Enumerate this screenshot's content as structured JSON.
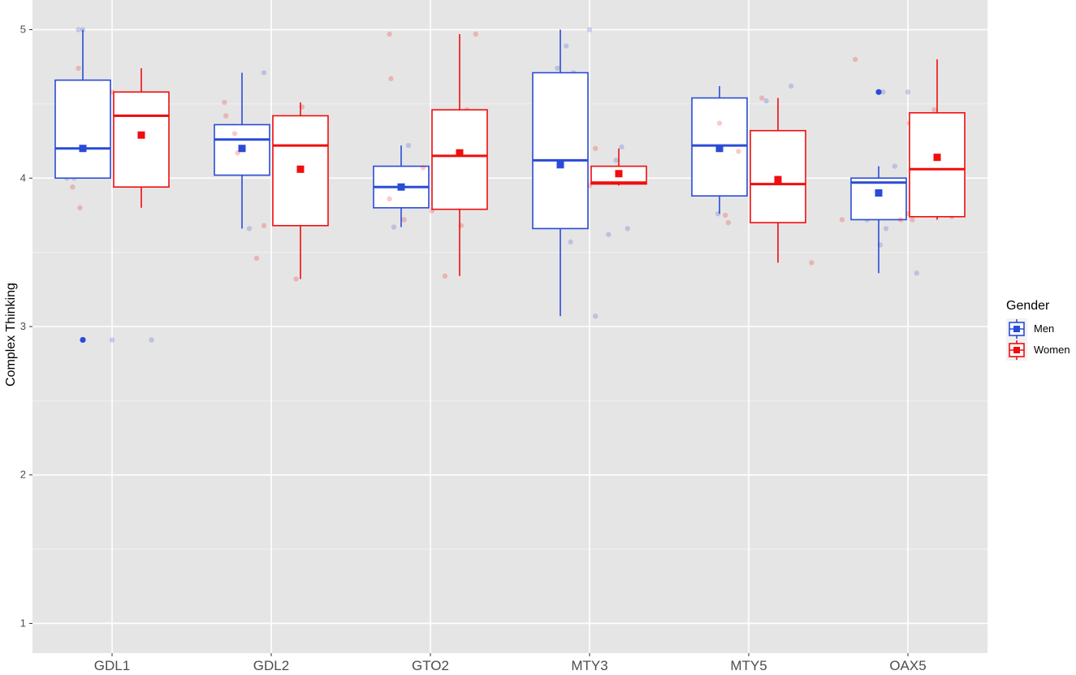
{
  "chart_data": {
    "type": "boxplot",
    "ylabel": "Complex Thinking",
    "xlabel": "",
    "ylim": [
      0.8,
      5.2
    ],
    "yticks": [
      1,
      2,
      3,
      4,
      5
    ],
    "grid": true,
    "legend": {
      "title": "Gender",
      "position": "right"
    },
    "categories": [
      "GDL1",
      "GDL2",
      "GTO2",
      "MTY3",
      "MTY5",
      "OAX5"
    ],
    "series": [
      {
        "name": "Men",
        "color": "#2a4bd7",
        "boxes": [
          {
            "min": 4.0,
            "q1": 4.0,
            "median": 4.2,
            "q3": 4.66,
            "max": 5.0,
            "mean": 4.2,
            "outliers": [
              2.91
            ],
            "points": [
              [
                -0.31,
                4.0
              ],
              [
                -0.3,
                4.32
              ],
              [
                -0.26,
                4.0
              ],
              [
                -0.23,
                5.0
              ],
              [
                -0.2,
                5.0
              ],
              [
                -0.18,
                4.2
              ],
              [
                0.0,
                2.91
              ],
              [
                0.27,
                2.91
              ]
            ]
          },
          {
            "min": 3.66,
            "q1": 4.02,
            "median": 4.26,
            "q3": 4.36,
            "max": 4.71,
            "mean": 4.2,
            "outliers": [],
            "points": [
              [
                -0.26,
                4.35
              ],
              [
                -0.15,
                3.66
              ],
              [
                -0.05,
                4.71
              ],
              [
                0.08,
                4.18
              ],
              [
                0.16,
                4.34
              ],
              [
                0.27,
                3.97
              ]
            ]
          },
          {
            "min": 3.67,
            "q1": 3.8,
            "median": 3.94,
            "q3": 4.08,
            "max": 4.22,
            "mean": 3.94,
            "outliers": [],
            "points": [
              [
                -0.25,
                3.67
              ],
              [
                -0.15,
                4.22
              ]
            ]
          },
          {
            "min": 3.07,
            "q1": 3.66,
            "median": 4.12,
            "q3": 4.71,
            "max": 5.0,
            "mean": 4.09,
            "outliers": [],
            "points": [
              [
                -0.22,
                4.74
              ],
              [
                -0.21,
                3.75
              ],
              [
                -0.16,
                4.89
              ],
              [
                -0.14,
                4.19
              ],
              [
                -0.13,
                3.57
              ],
              [
                -0.11,
                4.71
              ],
              [
                -0.1,
                3.72
              ],
              [
                0.0,
                5.0
              ],
              [
                0.04,
                3.07
              ],
              [
                0.13,
                3.62
              ],
              [
                0.18,
                4.12
              ],
              [
                0.22,
                4.21
              ],
              [
                0.26,
                3.66
              ]
            ]
          },
          {
            "min": 3.76,
            "q1": 3.88,
            "median": 4.22,
            "q3": 4.54,
            "max": 4.62,
            "mean": 4.2,
            "outliers": [],
            "points": [
              [
                -0.21,
                3.76
              ],
              [
                0.12,
                4.52
              ],
              [
                0.22,
                3.92
              ],
              [
                0.29,
                4.62
              ]
            ]
          },
          {
            "min": 3.36,
            "q1": 3.72,
            "median": 3.97,
            "q3": 4.0,
            "max": 4.08,
            "mean": 3.9,
            "outliers": [
              4.58
            ],
            "points": [
              [
                -0.28,
                3.72
              ],
              [
                -0.19,
                3.55
              ],
              [
                -0.17,
                4.58
              ],
              [
                -0.15,
                3.66
              ],
              [
                -0.09,
                4.08
              ],
              [
                0.0,
                4.58
              ],
              [
                0.06,
                3.36
              ],
              [
                0.09,
                3.97
              ],
              [
                0.18,
                4.0
              ],
              [
                0.22,
                3.92
              ]
            ]
          }
        ]
      },
      {
        "name": "Women",
        "color": "#f00d0d",
        "boxes": [
          {
            "min": 3.8,
            "q1": 3.94,
            "median": 4.42,
            "q3": 4.58,
            "max": 4.74,
            "mean": 4.29,
            "outliers": [],
            "points": [
              [
                -0.27,
                3.94
              ],
              [
                -0.23,
                4.74
              ],
              [
                -0.22,
                3.8
              ],
              [
                0.0,
                4.58
              ]
            ]
          },
          {
            "min": 3.32,
            "q1": 3.68,
            "median": 4.22,
            "q3": 4.42,
            "max": 4.51,
            "mean": 4.06,
            "outliers": [],
            "points": [
              [
                -0.32,
                4.51
              ],
              [
                -0.31,
                4.42
              ],
              [
                -0.25,
                4.3
              ],
              [
                -0.23,
                4.17
              ],
              [
                -0.1,
                3.46
              ],
              [
                -0.05,
                3.68
              ],
              [
                0.17,
                3.32
              ],
              [
                0.21,
                4.48
              ],
              [
                0.23,
                4.22
              ]
            ]
          },
          {
            "min": 3.34,
            "q1": 3.79,
            "median": 4.15,
            "q3": 4.46,
            "max": 4.97,
            "mean": 4.17,
            "outliers": [],
            "points": [
              [
                -0.28,
                4.97
              ],
              [
                -0.28,
                3.86
              ],
              [
                -0.27,
                4.67
              ],
              [
                -0.18,
                3.72
              ],
              [
                -0.05,
                4.07
              ],
              [
                0.01,
                3.78
              ],
              [
                0.1,
                3.34
              ],
              [
                0.21,
                3.68
              ],
              [
                0.25,
                4.46
              ],
              [
                0.31,
                4.97
              ],
              [
                0.32,
                4.37
              ],
              [
                0.32,
                4.27
              ]
            ]
          },
          {
            "min": 3.95,
            "q1": 3.96,
            "median": 3.97,
            "q3": 4.08,
            "max": 4.2,
            "mean": 4.03,
            "outliers": [],
            "points": [
              [
                0.0,
                3.95
              ],
              [
                0.04,
                4.2
              ]
            ]
          },
          {
            "min": 3.43,
            "q1": 3.7,
            "median": 3.96,
            "q3": 4.32,
            "max": 4.54,
            "mean": 3.99,
            "outliers": [],
            "points": [
              [
                -0.2,
                4.37
              ],
              [
                -0.16,
                3.75
              ],
              [
                -0.14,
                3.7
              ],
              [
                -0.07,
                4.18
              ],
              [
                0.09,
                4.54
              ],
              [
                0.43,
                3.43
              ]
            ]
          },
          {
            "min": 3.72,
            "q1": 3.74,
            "median": 4.06,
            "q3": 4.44,
            "max": 4.8,
            "mean": 4.14,
            "outliers": [],
            "points": [
              [
                -0.36,
                4.8
              ],
              [
                -0.45,
                3.72
              ],
              [
                -0.05,
                3.72
              ],
              [
                0.0,
                3.76
              ],
              [
                0.01,
                4.37
              ],
              [
                0.03,
                3.72
              ],
              [
                0.18,
                4.46
              ],
              [
                0.3,
                3.74
              ]
            ]
          }
        ]
      }
    ]
  }
}
